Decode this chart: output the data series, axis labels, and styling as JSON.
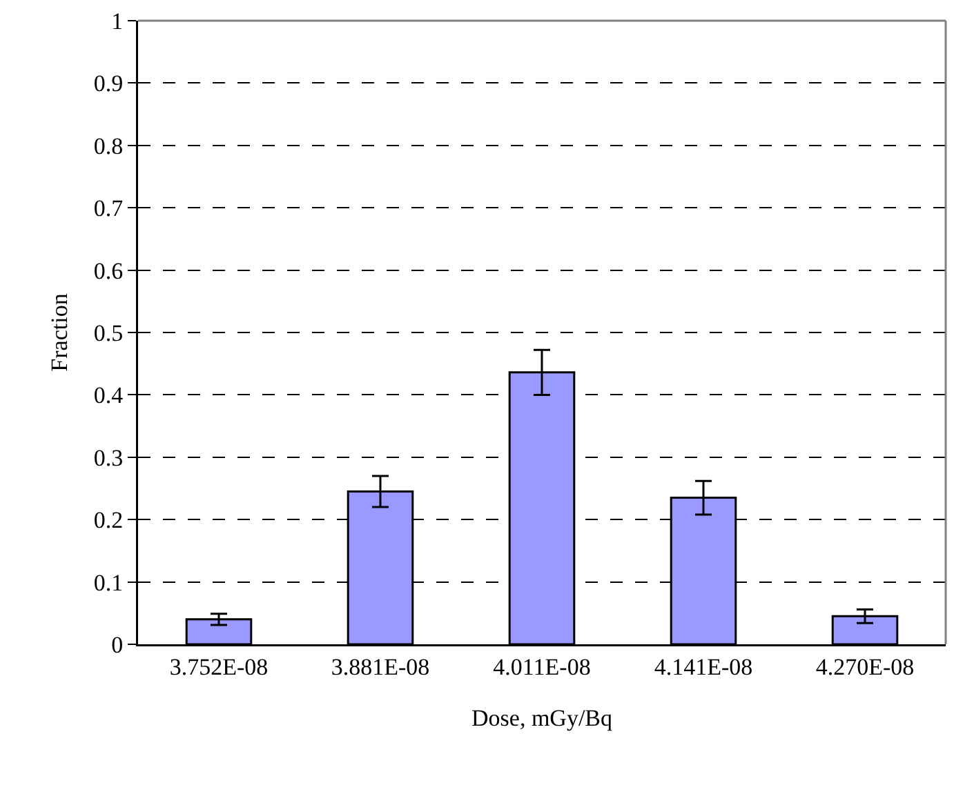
{
  "chart_data": {
    "type": "bar",
    "xlabel": "Dose, mGy/Bq",
    "ylabel": "Fraction",
    "categories": [
      "3.752E-08",
      "3.881E-08",
      "4.011E-08",
      "4.141E-08",
      "4.270E-08"
    ],
    "values": [
      0.04,
      0.245,
      0.436,
      0.235,
      0.045
    ],
    "errors": [
      0.009,
      0.025,
      0.036,
      0.027,
      0.011
    ],
    "color": "#9999ff",
    "ylim": [
      0,
      1
    ],
    "yticks": [
      0,
      0.1,
      0.2,
      0.3,
      0.4,
      0.5,
      0.6,
      0.7,
      0.8,
      0.9,
      1
    ],
    "grid": "y",
    "legend": false
  }
}
